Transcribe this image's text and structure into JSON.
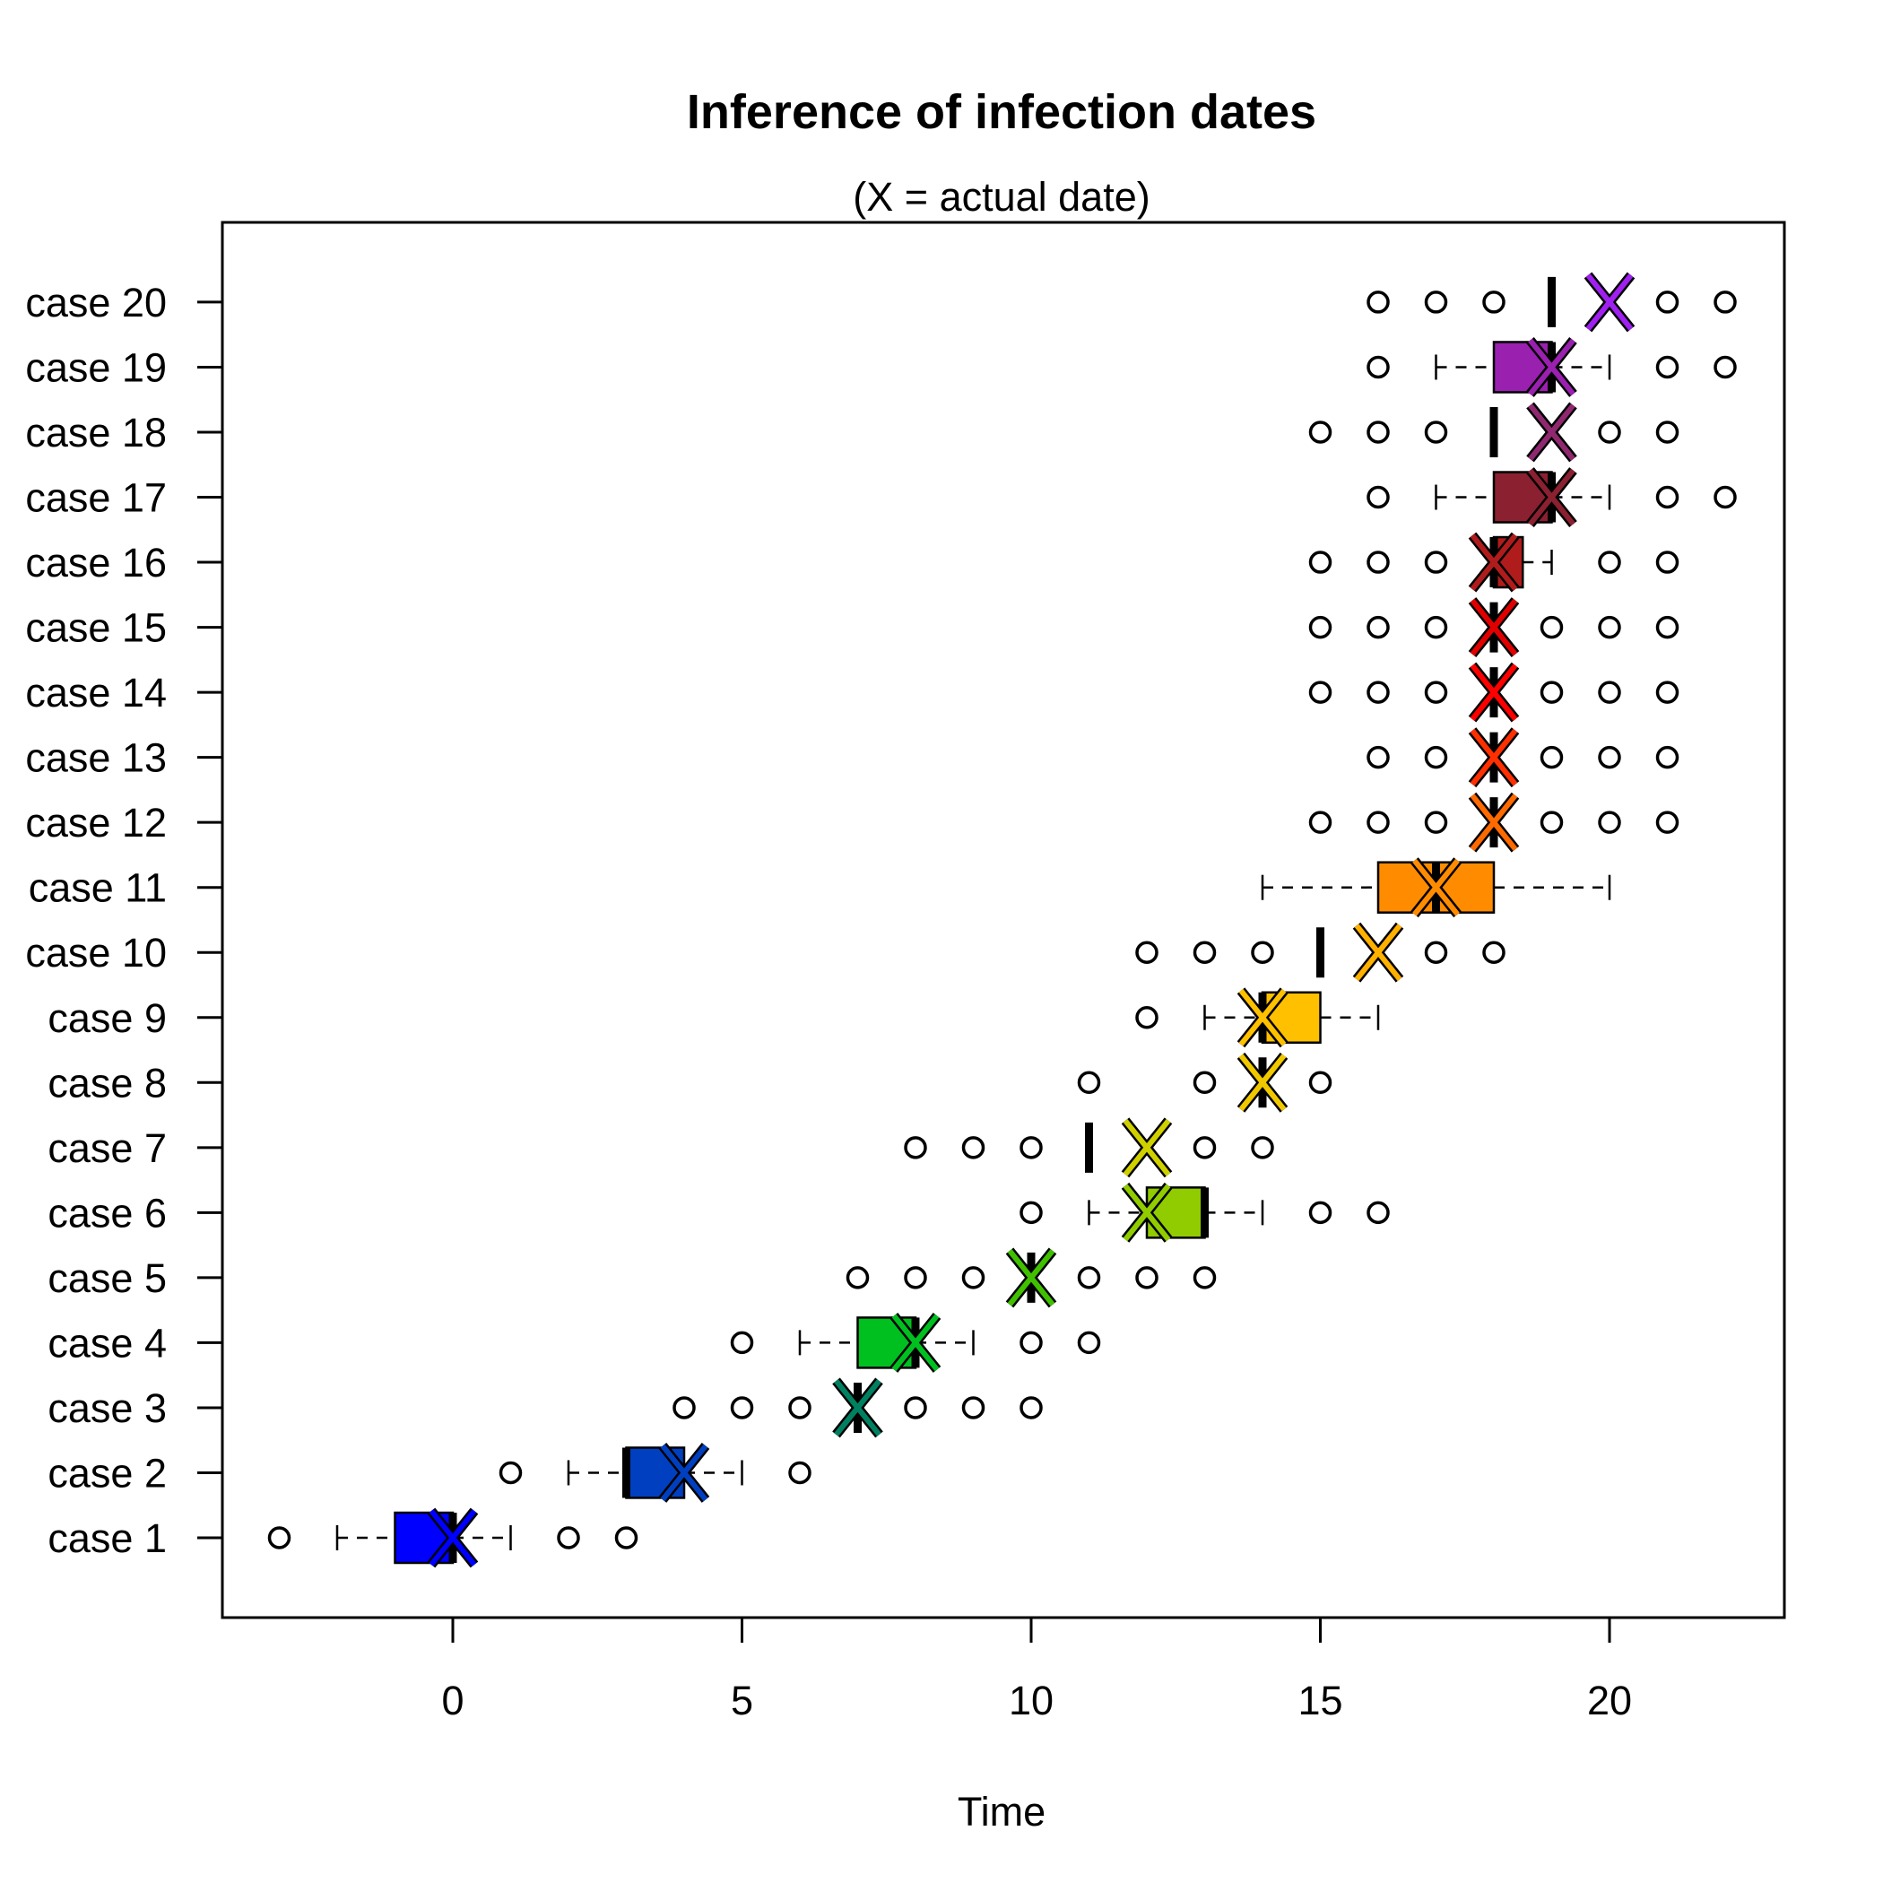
{
  "chart_data": {
    "type": "boxplot",
    "title": "Inference of infection dates",
    "subtitle": "(X = actual date)",
    "xlabel": "Time",
    "ylabel": "",
    "xlim": [
      -4,
      23
    ],
    "xticks": [
      0,
      5,
      10,
      15,
      20
    ],
    "categories": [
      "case 1",
      "case 2",
      "case 3",
      "case 4",
      "case 5",
      "case 6",
      "case 7",
      "case 8",
      "case 9",
      "case 10",
      "case 11",
      "case 12",
      "case 13",
      "case 14",
      "case 15",
      "case 16",
      "case 17",
      "case 18",
      "case 19",
      "case 20"
    ],
    "boxes": [
      {
        "case": "case 1",
        "color": "#0000FF",
        "q1": -1,
        "median": 0,
        "q3": 0,
        "whisker_low": -2,
        "whisker_high": 1,
        "outliers": [
          -3,
          2,
          3
        ],
        "actual": 0
      },
      {
        "case": "case 2",
        "color": "#0040C0",
        "q1": 3,
        "median": 3,
        "q3": 4,
        "whisker_low": 2,
        "whisker_high": 5,
        "outliers": [
          1,
          6
        ],
        "actual": 4
      },
      {
        "case": "case 3",
        "color": "#008060",
        "q1": 7,
        "median": 7,
        "q3": 7,
        "whisker_low": 7,
        "whisker_high": 7,
        "outliers": [
          4,
          5,
          6,
          8,
          9,
          10
        ],
        "actual": 7
      },
      {
        "case": "case 4",
        "color": "#00C020",
        "q1": 7,
        "median": 8,
        "q3": 8,
        "whisker_low": 6,
        "whisker_high": 9,
        "outliers": [
          5,
          10,
          11
        ],
        "actual": 8
      },
      {
        "case": "case 5",
        "color": "#40C000",
        "q1": 10,
        "median": 10,
        "q3": 10,
        "whisker_low": 10,
        "whisker_high": 10,
        "outliers": [
          7,
          8,
          9,
          11,
          12,
          13
        ],
        "actual": 10
      },
      {
        "case": "case 6",
        "color": "#90CC00",
        "q1": 12,
        "median": 13,
        "q3": 13,
        "whisker_low": 11,
        "whisker_high": 14,
        "outliers": [
          10,
          15,
          16
        ],
        "actual": 12
      },
      {
        "case": "case 7",
        "color": "#D0D000",
        "q1": 11,
        "median": 11,
        "q3": 11,
        "whisker_low": 11,
        "whisker_high": 11,
        "outliers": [
          8,
          9,
          10,
          13,
          14
        ],
        "actual": 12
      },
      {
        "case": "case 8",
        "color": "#F0C800",
        "q1": 14,
        "median": 14,
        "q3": 14,
        "whisker_low": 14,
        "whisker_high": 14,
        "outliers": [
          11,
          13,
          15
        ],
        "actual": 14
      },
      {
        "case": "case 9",
        "color": "#FFC000",
        "q1": 14,
        "median": 14,
        "q3": 15,
        "whisker_low": 13,
        "whisker_high": 16,
        "outliers": [
          12
        ],
        "actual": 14
      },
      {
        "case": "case 10",
        "color": "#FFB000",
        "q1": 15,
        "median": 15,
        "q3": 15,
        "whisker_low": 15,
        "whisker_high": 15,
        "outliers": [
          12,
          13,
          14,
          17,
          18
        ],
        "actual": 16
      },
      {
        "case": "case 11",
        "color": "#FF8C00",
        "q1": 16,
        "median": 17,
        "q3": 18,
        "whisker_low": 14,
        "whisker_high": 20,
        "outliers": [],
        "actual": 17
      },
      {
        "case": "case 12",
        "color": "#FF6A00",
        "q1": 18,
        "median": 18,
        "q3": 18,
        "whisker_low": 18,
        "whisker_high": 18,
        "outliers": [
          15,
          16,
          17,
          19,
          20,
          21
        ],
        "actual": 18
      },
      {
        "case": "case 13",
        "color": "#FF3000",
        "q1": 18,
        "median": 18,
        "q3": 18,
        "whisker_low": 18,
        "whisker_high": 18,
        "outliers": [
          16,
          17,
          19,
          20,
          21
        ],
        "actual": 18
      },
      {
        "case": "case 14",
        "color": "#FF0000",
        "q1": 18,
        "median": 18,
        "q3": 18,
        "whisker_low": 18,
        "whisker_high": 18,
        "outliers": [
          15,
          16,
          17,
          19,
          20,
          21
        ],
        "actual": 18
      },
      {
        "case": "case 15",
        "color": "#E00000",
        "q1": 18,
        "median": 18,
        "q3": 18,
        "whisker_low": 18,
        "whisker_high": 18,
        "outliers": [
          15,
          16,
          17,
          19,
          20,
          21
        ],
        "actual": 18
      },
      {
        "case": "case 16",
        "color": "#B01C1C",
        "q1": 18,
        "median": 18,
        "q3": 18.5,
        "whisker_low": 18,
        "whisker_high": 19,
        "outliers": [
          15,
          16,
          17,
          20,
          21
        ],
        "actual": 18
      },
      {
        "case": "case 17",
        "color": "#8B2030",
        "q1": 18,
        "median": 19,
        "q3": 19,
        "whisker_low": 17,
        "whisker_high": 20,
        "outliers": [
          16,
          21,
          22
        ],
        "actual": 19
      },
      {
        "case": "case 18",
        "color": "#902870",
        "q1": 18,
        "median": 18,
        "q3": 18,
        "whisker_low": 18,
        "whisker_high": 18,
        "outliers": [
          15,
          16,
          17,
          20,
          21
        ],
        "actual": 19
      },
      {
        "case": "case 19",
        "color": "#9A20B0",
        "q1": 18,
        "median": 19,
        "q3": 19,
        "whisker_low": 17,
        "whisker_high": 20,
        "outliers": [
          16,
          21,
          22
        ],
        "actual": 19
      },
      {
        "case": "case 20",
        "color": "#A020F0",
        "q1": 19,
        "median": 19,
        "q3": 19,
        "whisker_low": 19,
        "whisker_high": 19,
        "outliers": [
          16,
          17,
          18,
          21,
          22
        ],
        "actual": 20
      }
    ]
  }
}
